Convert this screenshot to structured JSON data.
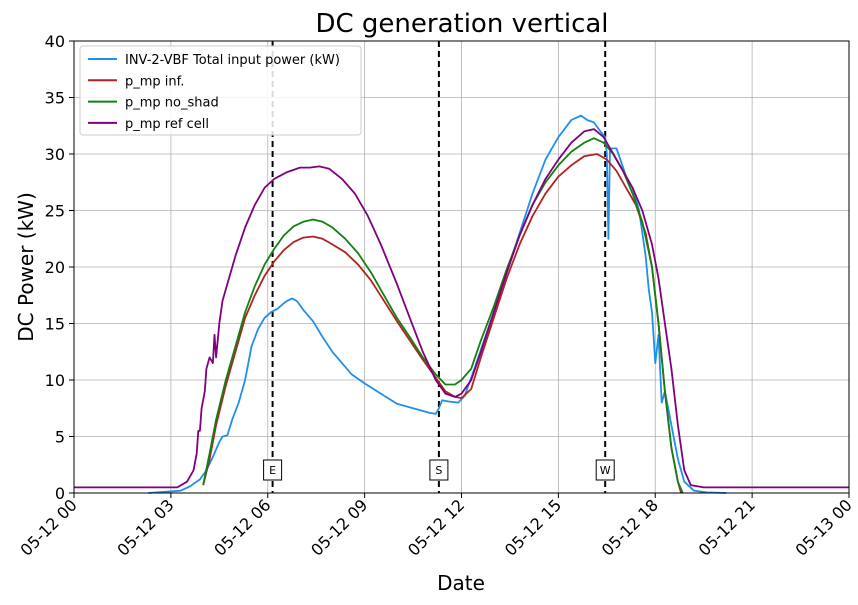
{
  "chart_data": {
    "type": "line",
    "title": "DC generation vertical",
    "xlabel": "Date",
    "ylabel": "DC Power (kW)",
    "xlim": [
      0,
      24
    ],
    "ylim": [
      0,
      40
    ],
    "x_ticks": [
      {
        "x": 0,
        "label": "05-12 00"
      },
      {
        "x": 3,
        "label": "05-12 03"
      },
      {
        "x": 6,
        "label": "05-12 06"
      },
      {
        "x": 9,
        "label": "05-12 09"
      },
      {
        "x": 12,
        "label": "05-12 12"
      },
      {
        "x": 15,
        "label": "05-12 15"
      },
      {
        "x": 18,
        "label": "05-12 18"
      },
      {
        "x": 21,
        "label": "05-12 21"
      },
      {
        "x": 24,
        "label": "05-13 00"
      }
    ],
    "y_ticks": [
      0,
      5,
      10,
      15,
      20,
      25,
      30,
      35,
      40
    ],
    "grid": true,
    "legend_position": "top-left",
    "x_unit_note": "hours of day 05-12",
    "series": [
      {
        "name": "INV-2-VBF Total input power (kW)",
        "color": "#1e90ec",
        "points": [
          [
            2.3,
            0
          ],
          [
            3.3,
            0.2
          ],
          [
            3.6,
            0.6
          ],
          [
            3.9,
            1.2
          ],
          [
            4.1,
            2
          ],
          [
            4.3,
            3.2
          ],
          [
            4.5,
            4.5
          ],
          [
            4.6,
            5
          ],
          [
            4.75,
            5.1
          ],
          [
            4.9,
            6.5
          ],
          [
            5.1,
            8
          ],
          [
            5.3,
            10
          ],
          [
            5.5,
            13
          ],
          [
            5.7,
            14.5
          ],
          [
            5.9,
            15.5
          ],
          [
            6.1,
            16
          ],
          [
            6.3,
            16.3
          ],
          [
            6.5,
            16.8
          ],
          [
            6.6,
            17
          ],
          [
            6.75,
            17.2
          ],
          [
            6.9,
            17
          ],
          [
            7.1,
            16.2
          ],
          [
            7.4,
            15.2
          ],
          [
            7.7,
            13.8
          ],
          [
            8,
            12.5
          ],
          [
            8.3,
            11.5
          ],
          [
            8.6,
            10.5
          ],
          [
            9,
            9.7
          ],
          [
            9.5,
            8.8
          ],
          [
            10,
            7.9
          ],
          [
            10.5,
            7.5
          ],
          [
            11,
            7.1
          ],
          [
            11.2,
            7.0
          ],
          [
            11.3,
            7.5
          ],
          [
            11.4,
            8.2
          ],
          [
            11.6,
            8.1
          ],
          [
            11.9,
            8
          ],
          [
            12.1,
            8.6
          ],
          [
            12.4,
            11
          ],
          [
            12.7,
            13.5
          ],
          [
            13,
            16
          ],
          [
            13.4,
            19.5
          ],
          [
            13.8,
            23
          ],
          [
            14.2,
            26.5
          ],
          [
            14.6,
            29.5
          ],
          [
            15,
            31.5
          ],
          [
            15.4,
            33
          ],
          [
            15.7,
            33.4
          ],
          [
            15.9,
            33
          ],
          [
            16.1,
            32.8
          ],
          [
            16.3,
            32
          ],
          [
            16.45,
            31.5
          ],
          [
            16.5,
            30
          ],
          [
            16.55,
            22.5
          ],
          [
            16.6,
            30.5
          ],
          [
            16.8,
            30.5
          ],
          [
            17.1,
            28
          ],
          [
            17.3,
            27
          ],
          [
            17.5,
            25
          ],
          [
            17.7,
            21
          ],
          [
            17.8,
            18
          ],
          [
            17.9,
            16
          ],
          [
            18.0,
            11.5
          ],
          [
            18.1,
            14
          ],
          [
            18.2,
            8
          ],
          [
            18.3,
            9
          ],
          [
            18.5,
            6
          ],
          [
            18.7,
            3
          ],
          [
            18.9,
            1
          ],
          [
            19.2,
            0.2
          ],
          [
            19.6,
            0.05
          ],
          [
            20.2,
            0
          ]
        ]
      },
      {
        "name": "p_mp inf.",
        "color": "#b22222",
        "points": [
          [
            4.0,
            0.7
          ],
          [
            4.2,
            3
          ],
          [
            4.4,
            6
          ],
          [
            4.7,
            9.5
          ],
          [
            5.0,
            12.5
          ],
          [
            5.3,
            15.5
          ],
          [
            5.6,
            17.5
          ],
          [
            5.9,
            19.2
          ],
          [
            6.2,
            20.5
          ],
          [
            6.5,
            21.5
          ],
          [
            6.8,
            22.2
          ],
          [
            7.1,
            22.6
          ],
          [
            7.4,
            22.7
          ],
          [
            7.7,
            22.5
          ],
          [
            8.0,
            22
          ],
          [
            8.4,
            21.3
          ],
          [
            8.8,
            20.2
          ],
          [
            9.2,
            18.8
          ],
          [
            9.6,
            17
          ],
          [
            10.0,
            15.2
          ],
          [
            10.4,
            13.5
          ],
          [
            10.8,
            11.8
          ],
          [
            11.2,
            10.2
          ],
          [
            11.5,
            9
          ],
          [
            11.8,
            8.5
          ],
          [
            12.0,
            8.4
          ],
          [
            12.3,
            9.2
          ],
          [
            12.6,
            12
          ],
          [
            13.0,
            15.5
          ],
          [
            13.4,
            19
          ],
          [
            13.8,
            22
          ],
          [
            14.2,
            24.5
          ],
          [
            14.6,
            26.5
          ],
          [
            15.0,
            28
          ],
          [
            15.4,
            29
          ],
          [
            15.8,
            29.8
          ],
          [
            16.2,
            30
          ],
          [
            16.5,
            29.5
          ],
          [
            16.8,
            28.5
          ],
          [
            17.1,
            27
          ],
          [
            17.4,
            25.5
          ],
          [
            17.7,
            23
          ],
          [
            17.9,
            20
          ],
          [
            18.1,
            15
          ],
          [
            18.3,
            9
          ],
          [
            18.5,
            4
          ],
          [
            18.7,
            1
          ],
          [
            18.8,
            0
          ]
        ]
      },
      {
        "name": "p_mp no_shad",
        "color": "#128012",
        "points": [
          [
            4.0,
            0.7
          ],
          [
            4.2,
            3.5
          ],
          [
            4.4,
            6.5
          ],
          [
            4.7,
            10
          ],
          [
            5.0,
            13
          ],
          [
            5.3,
            16
          ],
          [
            5.6,
            18.3
          ],
          [
            5.9,
            20.2
          ],
          [
            6.2,
            21.6
          ],
          [
            6.5,
            22.8
          ],
          [
            6.8,
            23.6
          ],
          [
            7.1,
            24
          ],
          [
            7.4,
            24.2
          ],
          [
            7.7,
            24
          ],
          [
            8.0,
            23.5
          ],
          [
            8.4,
            22.5
          ],
          [
            8.8,
            21.2
          ],
          [
            9.2,
            19.5
          ],
          [
            9.6,
            17.5
          ],
          [
            10.0,
            15.5
          ],
          [
            10.4,
            13.8
          ],
          [
            10.8,
            12
          ],
          [
            11.2,
            10.5
          ],
          [
            11.5,
            9.6
          ],
          [
            11.8,
            9.6
          ],
          [
            12.0,
            10
          ],
          [
            12.3,
            11
          ],
          [
            12.6,
            13.5
          ],
          [
            13.0,
            16.5
          ],
          [
            13.4,
            19.8
          ],
          [
            13.8,
            22.8
          ],
          [
            14.2,
            25.5
          ],
          [
            14.6,
            27.5
          ],
          [
            15.0,
            29
          ],
          [
            15.4,
            30.2
          ],
          [
            15.8,
            31
          ],
          [
            16.1,
            31.4
          ],
          [
            16.4,
            31
          ],
          [
            16.7,
            30
          ],
          [
            17.0,
            28.5
          ],
          [
            17.3,
            26.5
          ],
          [
            17.6,
            24
          ],
          [
            17.9,
            20
          ],
          [
            18.1,
            15
          ],
          [
            18.3,
            9
          ],
          [
            18.5,
            4
          ],
          [
            18.7,
            1
          ],
          [
            18.85,
            0
          ]
        ]
      },
      {
        "name": "p_mp ref cell",
        "color": "#800080",
        "points": [
          [
            0,
            0.5
          ],
          [
            3.2,
            0.5
          ],
          [
            3.5,
            1
          ],
          [
            3.7,
            2
          ],
          [
            3.8,
            3.5
          ],
          [
            3.85,
            5.5
          ],
          [
            3.9,
            5.5
          ],
          [
            3.95,
            7.5
          ],
          [
            4.05,
            9
          ],
          [
            4.1,
            11
          ],
          [
            4.2,
            12
          ],
          [
            4.3,
            11.5
          ],
          [
            4.35,
            14
          ],
          [
            4.4,
            12
          ],
          [
            4.5,
            15
          ],
          [
            4.6,
            17
          ],
          [
            4.8,
            19
          ],
          [
            5.0,
            21
          ],
          [
            5.3,
            23.5
          ],
          [
            5.6,
            25.5
          ],
          [
            5.9,
            27
          ],
          [
            6.2,
            27.8
          ],
          [
            6.6,
            28.4
          ],
          [
            7.0,
            28.8
          ],
          [
            7.3,
            28.8
          ],
          [
            7.6,
            28.9
          ],
          [
            7.9,
            28.7
          ],
          [
            8.3,
            27.8
          ],
          [
            8.7,
            26.5
          ],
          [
            9.1,
            24.5
          ],
          [
            9.5,
            22
          ],
          [
            10.0,
            18.5
          ],
          [
            10.4,
            15.5
          ],
          [
            10.8,
            12.5
          ],
          [
            11.2,
            10
          ],
          [
            11.5,
            8.8
          ],
          [
            11.8,
            8.5
          ],
          [
            12.0,
            8.8
          ],
          [
            12.3,
            10
          ],
          [
            12.6,
            12.5
          ],
          [
            13.0,
            16
          ],
          [
            13.4,
            19.5
          ],
          [
            13.8,
            22.8
          ],
          [
            14.2,
            25.5
          ],
          [
            14.6,
            27.8
          ],
          [
            15.0,
            29.5
          ],
          [
            15.4,
            31
          ],
          [
            15.8,
            32
          ],
          [
            16.1,
            32.2
          ],
          [
            16.4,
            31.5
          ],
          [
            16.7,
            30
          ],
          [
            17.0,
            28.5
          ],
          [
            17.3,
            27
          ],
          [
            17.6,
            25
          ],
          [
            17.9,
            22
          ],
          [
            18.1,
            19
          ],
          [
            18.3,
            15
          ],
          [
            18.5,
            11
          ],
          [
            18.7,
            6
          ],
          [
            18.9,
            2
          ],
          [
            19.1,
            0.7
          ],
          [
            19.5,
            0.5
          ],
          [
            24,
            0.5
          ]
        ]
      }
    ],
    "vlines": [
      {
        "x": 6.15,
        "label": "E"
      },
      {
        "x": 11.3,
        "label": "S"
      },
      {
        "x": 16.45,
        "label": "W"
      }
    ]
  }
}
